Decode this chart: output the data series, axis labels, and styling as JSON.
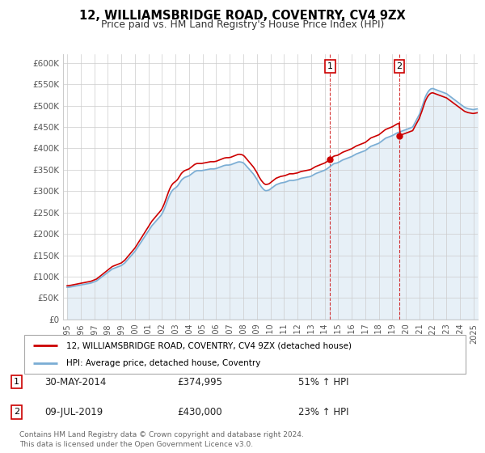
{
  "title": "12, WILLIAMSBRIDGE ROAD, COVENTRY, CV4 9ZX",
  "subtitle": "Price paid vs. HM Land Registry's House Price Index (HPI)",
  "sale1_date": "30-MAY-2014",
  "sale1_price": 374995,
  "sale1_year": 2014.41,
  "sale2_date": "09-JUL-2019",
  "sale2_price": 430000,
  "sale2_year": 2019.52,
  "legend_line1": "12, WILLIAMSBRIDGE ROAD, COVENTRY, CV4 9ZX (detached house)",
  "legend_line2": "HPI: Average price, detached house, Coventry",
  "footer": "Contains HM Land Registry data © Crown copyright and database right 2024.\nThis data is licensed under the Open Government Licence v3.0.",
  "red_color": "#cc0000",
  "blue_line_color": "#7aadd4",
  "background_color": "#ffffff",
  "plot_bg_color": "#ffffff",
  "grid_color": "#cccccc",
  "ylim": [
    0,
    620000
  ],
  "yticks": [
    0,
    50000,
    100000,
    150000,
    200000,
    250000,
    300000,
    350000,
    400000,
    450000,
    500000,
    550000,
    600000
  ],
  "ytick_labels": [
    "£0",
    "£50K",
    "£100K",
    "£150K",
    "£200K",
    "£250K",
    "£300K",
    "£350K",
    "£400K",
    "£450K",
    "£500K",
    "£550K",
    "£600K"
  ],
  "hpi_values": [
    75000,
    75200,
    75500,
    76000,
    76500,
    77000,
    77500,
    78000,
    78500,
    79000,
    79500,
    80000,
    80500,
    81000,
    81500,
    82000,
    82500,
    83000,
    83500,
    84000,
    84500,
    85000,
    86000,
    87000,
    88000,
    89000,
    90000,
    92000,
    94000,
    96000,
    98000,
    100000,
    102000,
    104000,
    106000,
    108000,
    110000,
    112000,
    114000,
    116000,
    118000,
    119000,
    120000,
    121000,
    122000,
    123000,
    124000,
    125000,
    126000,
    128000,
    130000,
    132000,
    135000,
    138000,
    141000,
    144000,
    147000,
    150000,
    153000,
    156000,
    159000,
    163000,
    167000,
    171000,
    175000,
    179000,
    183000,
    187000,
    191000,
    195000,
    199000,
    203000,
    207000,
    211000,
    215000,
    219000,
    222000,
    225000,
    228000,
    231000,
    234000,
    237000,
    240000,
    243000,
    247000,
    252000,
    258000,
    265000,
    272000,
    279000,
    286000,
    292000,
    297000,
    301000,
    304000,
    306000,
    308000,
    310000,
    313000,
    317000,
    321000,
    325000,
    328000,
    330000,
    332000,
    333000,
    334000,
    335000,
    336000,
    338000,
    340000,
    342000,
    344000,
    346000,
    347000,
    348000,
    348000,
    348000,
    348000,
    348000,
    348500,
    349000,
    349500,
    350000,
    350500,
    351000,
    351500,
    352000,
    352000,
    352000,
    352000,
    352500,
    353000,
    354000,
    355000,
    356000,
    357000,
    358000,
    359000,
    360000,
    360500,
    361000,
    361000,
    361000,
    361500,
    362000,
    363000,
    364000,
    365000,
    366000,
    367000,
    368000,
    368500,
    368500,
    368000,
    367500,
    366000,
    364000,
    361000,
    358000,
    355000,
    352000,
    349000,
    346000,
    343000,
    340000,
    336000,
    332000,
    328000,
    323000,
    318000,
    314000,
    310000,
    307000,
    304000,
    302000,
    301000,
    301500,
    302000,
    303000,
    305000,
    307000,
    309000,
    311000,
    313000,
    315000,
    316000,
    317000,
    318000,
    319000,
    319500,
    320000,
    320500,
    321000,
    322000,
    323000,
    324000,
    325000,
    325000,
    325000,
    325000,
    325500,
    326000,
    326500,
    327000,
    328000,
    329000,
    330000,
    330500,
    331000,
    331500,
    332000,
    332500,
    333000,
    333500,
    334000,
    335000,
    336500,
    338000,
    339500,
    341000,
    342000,
    343000,
    344000,
    345000,
    346000,
    347000,
    348000,
    349000,
    350500,
    352000,
    354000,
    356000,
    358000,
    360000,
    362000,
    364000,
    365000,
    365500,
    366000,
    367000,
    368500,
    370000,
    371500,
    373000,
    374000,
    375000,
    376000,
    377000,
    378000,
    379000,
    380000,
    381000,
    382500,
    384000,
    385500,
    387000,
    388000,
    389000,
    390000,
    391000,
    392000,
    393000,
    394000,
    395000,
    397000,
    399000,
    401000,
    403000,
    405000,
    406000,
    407000,
    408000,
    409000,
    410000,
    411000,
    412000,
    414000,
    416000,
    418000,
    420000,
    422000,
    424000,
    425000,
    426000,
    427000,
    428000,
    429000,
    430000,
    431500,
    433000,
    434500,
    436000,
    437000,
    438000,
    439000,
    440000,
    441000,
    442000,
    443000,
    444000,
    445000,
    446000,
    447000,
    448000,
    449000,
    450000,
    455000,
    460000,
    465000,
    470000,
    475000,
    480000,
    488000,
    495000,
    503000,
    511000,
    519000,
    525000,
    530000,
    534000,
    537000,
    539000,
    540000,
    540000,
    539000,
    538000,
    537000,
    536000,
    535000,
    534000,
    533000,
    532000,
    531000,
    530000,
    529000,
    528000,
    526000,
    524000,
    522000,
    520000,
    518000,
    516000,
    514000,
    512000,
    510000,
    508000,
    506000,
    504000,
    502000,
    500000,
    498000,
    496000,
    495000,
    494000,
    493000,
    492500,
    492000,
    491500,
    491000,
    491000,
    491500,
    492000,
    492500,
    493000,
    494000,
    495000,
    495000
  ]
}
